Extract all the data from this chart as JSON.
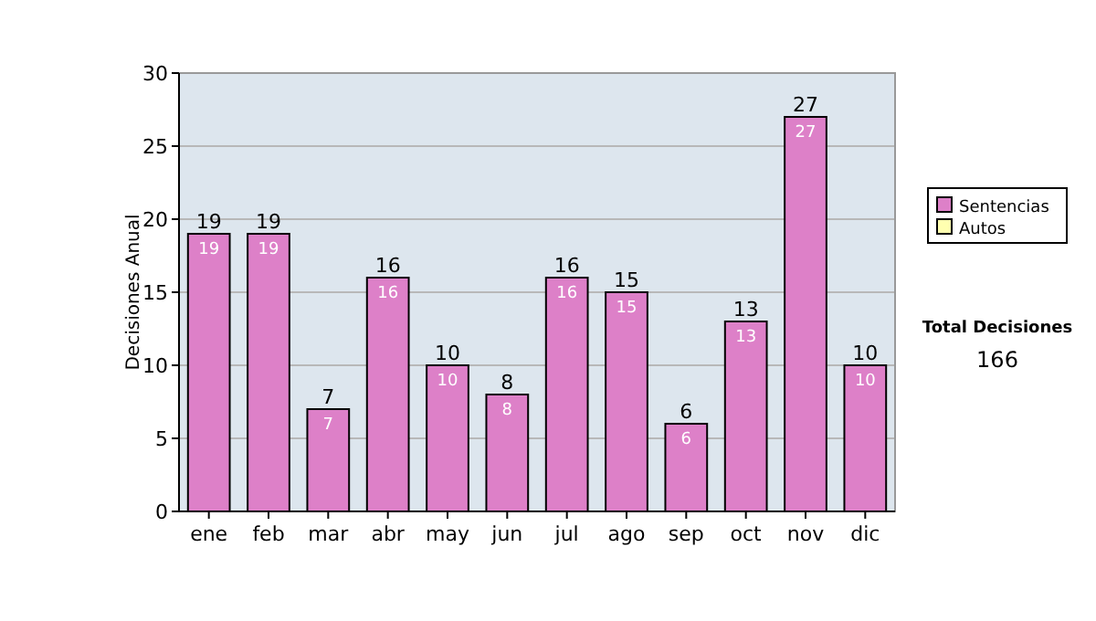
{
  "chart_data": {
    "type": "bar",
    "ylabel": "Decisiones Anual",
    "categories": [
      "ene",
      "feb",
      "mar",
      "abr",
      "may",
      "jun",
      "jul",
      "ago",
      "sep",
      "oct",
      "nov",
      "dic"
    ],
    "series": [
      {
        "name": "Sentencias",
        "color": "#dd80c8",
        "values": [
          19,
          19,
          7,
          16,
          10,
          8,
          16,
          15,
          6,
          13,
          27,
          10
        ],
        "value_labels": [
          "19",
          "19",
          "7",
          "16",
          "10",
          "8",
          "16",
          "15",
          "6",
          "13",
          "27",
          "10"
        ]
      },
      {
        "name": "Autos",
        "color": "#ffffb0",
        "values": [
          0,
          0,
          0,
          0,
          0,
          0,
          0,
          0,
          0,
          0,
          0,
          0
        ]
      }
    ],
    "stacked": true,
    "totals": [
      "19",
      "19",
      "7",
      "16",
      "10",
      "8",
      "16",
      "15",
      "6",
      "13",
      "27",
      "10"
    ],
    "ylim": [
      0,
      30
    ],
    "yticks": [
      0,
      5,
      10,
      15,
      20,
      25,
      30
    ],
    "grid": "y",
    "legend": "right",
    "annotations": [
      "Total Decisiones",
      "166"
    ]
  }
}
